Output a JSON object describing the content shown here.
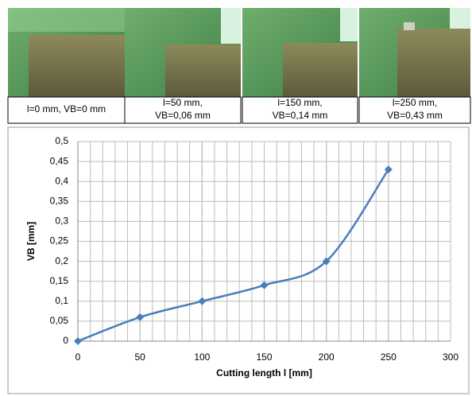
{
  "photos": [
    {
      "caption": [
        "l=0 mm, VB=0 mm"
      ]
    },
    {
      "caption": [
        "l=50 mm,",
        "VB=0,06 mm"
      ]
    },
    {
      "caption": [
        "l=150 mm,",
        "VB=0,14 mm"
      ]
    },
    {
      "caption": [
        "l=250 mm,",
        "VB=0,43 mm"
      ]
    }
  ],
  "chart_data": {
    "type": "line",
    "x_label": "Cutting length l [mm]",
    "y_label": "VB [mm]",
    "x": [
      0,
      50,
      100,
      150,
      200,
      250
    ],
    "values": [
      0,
      0.06,
      0.1,
      0.14,
      0.2,
      0.43
    ],
    "color": "#4a7ebb",
    "smooth": true,
    "marker": "diamond",
    "xlim": [
      0,
      300
    ],
    "xticks": [
      0,
      50,
      100,
      150,
      200,
      250,
      300
    ],
    "ylim": [
      0,
      0.5
    ],
    "yticks": [
      0,
      {
        "value": 0.05,
        "label": "0,05"
      },
      {
        "value": 0.1,
        "label": "0,1"
      },
      {
        "value": 0.15,
        "label": "0,15"
      },
      {
        "value": 0.2,
        "label": "0,2"
      },
      {
        "value": 0.25,
        "label": "0,25"
      },
      {
        "value": 0.3,
        "label": "0,3"
      },
      {
        "value": 0.35,
        "label": "0,35"
      },
      {
        "value": 0.4,
        "label": "0,4"
      },
      {
        "value": 0.45,
        "label": "0,45"
      },
      {
        "value": 0.5,
        "label": "0,5"
      }
    ],
    "grid": true,
    "x_minor_grid": 10
  }
}
